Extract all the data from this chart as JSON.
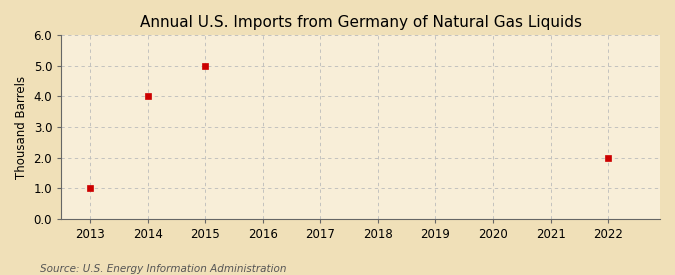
{
  "title": "Annual U.S. Imports from Germany of Natural Gas Liquids",
  "ylabel": "Thousand Barrels",
  "source": "Source: U.S. Energy Information Administration",
  "background_color": "#f0e0b8",
  "plot_background_color": "#f8eed8",
  "data_x": [
    2013,
    2014,
    2015,
    2022
  ],
  "data_y": [
    1.0,
    4.0,
    5.0,
    2.0
  ],
  "marker_color": "#cc0000",
  "marker_size": 4,
  "xlim": [
    2012.5,
    2022.9
  ],
  "ylim": [
    0.0,
    6.0
  ],
  "xticks": [
    2013,
    2014,
    2015,
    2016,
    2017,
    2018,
    2019,
    2020,
    2021,
    2022
  ],
  "yticks": [
    0.0,
    1.0,
    2.0,
    3.0,
    4.0,
    5.0,
    6.0
  ],
  "grid_color": "#bbbbbb",
  "grid_linestyle": "--",
  "title_fontsize": 11,
  "axis_label_fontsize": 8.5,
  "tick_fontsize": 8.5,
  "source_fontsize": 7.5
}
